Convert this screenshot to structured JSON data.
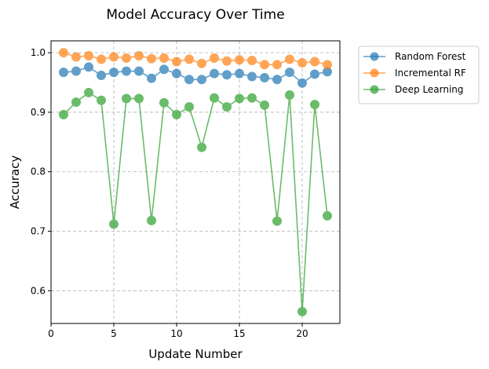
{
  "chart_data": {
    "type": "line",
    "title": "Model Accuracy Over Time",
    "xlabel": "Update Number",
    "ylabel": "Accuracy",
    "xlim": [
      0,
      23
    ],
    "ylim": [
      0.545,
      1.02
    ],
    "xticks": [
      0,
      5,
      10,
      15,
      20
    ],
    "yticks": [
      0.6,
      0.7,
      0.8,
      0.9,
      1.0
    ],
    "ytick_labels": [
      "0.6",
      "0.7",
      "0.8",
      "0.9",
      "1.0"
    ],
    "grid": true,
    "legend_position": "outside-top-right",
    "x": [
      1,
      2,
      3,
      4,
      5,
      6,
      7,
      8,
      9,
      10,
      11,
      12,
      13,
      14,
      15,
      16,
      17,
      18,
      19,
      20,
      21,
      22
    ],
    "series": [
      {
        "name": "Random Forest",
        "color": "#1f77b4",
        "values": [
          0.967,
          0.969,
          0.976,
          0.962,
          0.967,
          0.969,
          0.969,
          0.957,
          0.972,
          0.965,
          0.955,
          0.955,
          0.965,
          0.963,
          0.965,
          0.96,
          0.958,
          0.955,
          0.967,
          0.949,
          0.964,
          0.968
        ]
      },
      {
        "name": "Incremental RF",
        "color": "#ff7f0e",
        "values": [
          1.0,
          0.993,
          0.995,
          0.989,
          0.993,
          0.991,
          0.995,
          0.99,
          0.991,
          0.985,
          0.989,
          0.982,
          0.991,
          0.986,
          0.988,
          0.987,
          0.98,
          0.98,
          0.989,
          0.983,
          0.985,
          0.98
        ]
      },
      {
        "name": "Deep Learning",
        "color": "#2ca02c",
        "values": [
          0.896,
          0.917,
          0.933,
          0.92,
          0.712,
          0.923,
          0.923,
          0.718,
          0.916,
          0.896,
          0.909,
          0.841,
          0.924,
          0.909,
          0.923,
          0.924,
          0.912,
          0.717,
          0.929,
          0.565,
          0.913,
          0.726
        ]
      }
    ]
  }
}
